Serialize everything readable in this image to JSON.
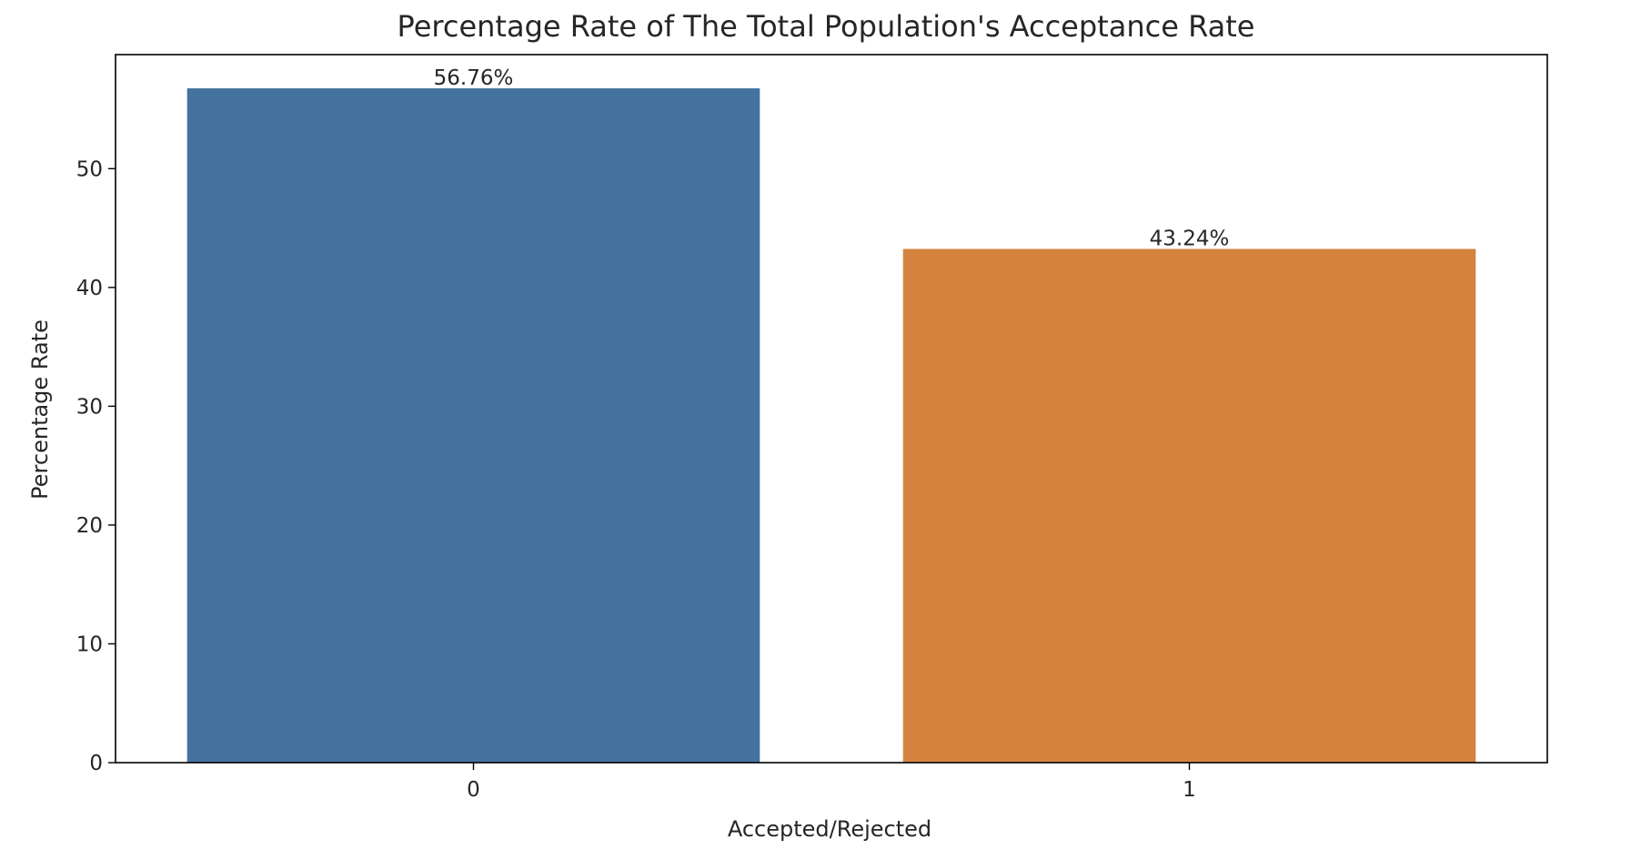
{
  "chart_data": {
    "type": "bar",
    "title": "Percentage Rate of The Total Population's Acceptance Rate",
    "xlabel": "Accepted/Rejected",
    "ylabel": "Percentage Rate",
    "categories": [
      "0",
      "1"
    ],
    "values": [
      56.76,
      43.24
    ],
    "data_labels": [
      "56.76%",
      "43.24%"
    ],
    "colors": [
      "#4473a0",
      "#d4843f"
    ],
    "ylim": [
      0,
      59.6
    ],
    "yticks": [
      0,
      10,
      20,
      30,
      40,
      50
    ],
    "grid": false,
    "legend": "none"
  }
}
